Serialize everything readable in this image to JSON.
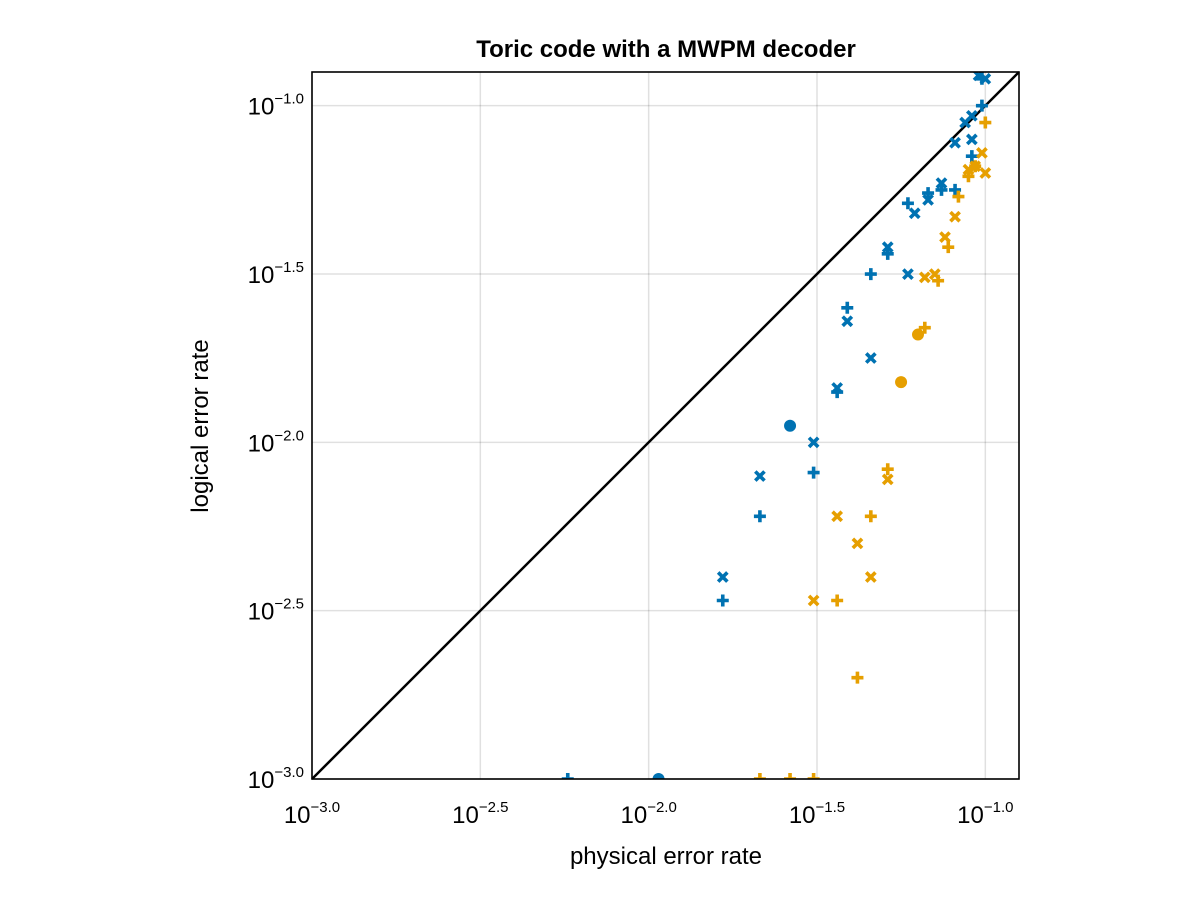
{
  "chart_data": {
    "type": "scatter",
    "title": "Toric code with a MWPM decoder",
    "xlabel": "physical error rate",
    "ylabel": "logical error rate",
    "x_scale": "log10",
    "y_scale": "log10",
    "xlim": [
      0.001,
      0.1259
    ],
    "ylim": [
      0.001,
      0.1259
    ],
    "grid": true,
    "x_ticks": [
      {
        "base": "10",
        "exp": "−3.0",
        "value": 0.001
      },
      {
        "base": "10",
        "exp": "−2.5",
        "value": 0.003162
      },
      {
        "base": "10",
        "exp": "−2.0",
        "value": 0.01
      },
      {
        "base": "10",
        "exp": "−1.5",
        "value": 0.03162
      },
      {
        "base": "10",
        "exp": "−1.0",
        "value": 0.1
      }
    ],
    "y_ticks": [
      {
        "base": "10",
        "exp": "−3.0",
        "value": 0.001
      },
      {
        "base": "10",
        "exp": "−2.5",
        "value": 0.003162
      },
      {
        "base": "10",
        "exp": "−2.0",
        "value": 0.01
      },
      {
        "base": "10",
        "exp": "−1.5",
        "value": 0.03162
      },
      {
        "base": "10",
        "exp": "−1.0",
        "value": 0.1
      }
    ],
    "reference_line": {
      "type": "y=x",
      "color": "#000000"
    },
    "colors": {
      "blue": "#0072b2",
      "orange": "#e69f00"
    },
    "series": [
      {
        "marker": "circle",
        "color": "#0072b2",
        "points": [
          [
            0.0107,
            0.001
          ],
          [
            0.0263,
            0.0112
          ]
        ]
      },
      {
        "marker": "plus",
        "color": "#0072b2",
        "points": [
          [
            0.00575,
            0.001
          ],
          [
            0.0166,
            0.00339
          ],
          [
            0.0214,
            0.00603
          ],
          [
            0.0309,
            0.00813
          ],
          [
            0.0363,
            0.0141
          ],
          [
            0.0389,
            0.0251
          ],
          [
            0.0457,
            0.0316
          ],
          [
            0.0513,
            0.0363
          ],
          [
            0.0589,
            0.0513
          ],
          [
            0.0676,
            0.055
          ],
          [
            0.0741,
            0.0562
          ],
          [
            0.0813,
            0.0562
          ],
          [
            0.0912,
            0.0708
          ],
          [
            0.0977,
            0.1
          ],
          [
            0.0977,
            0.1202
          ]
        ]
      },
      {
        "marker": "cross",
        "color": "#0072b2",
        "points": [
          [
            0.0166,
            0.00398
          ],
          [
            0.0214,
            0.00794
          ],
          [
            0.0309,
            0.01
          ],
          [
            0.0363,
            0.0145
          ],
          [
            0.0389,
            0.0229
          ],
          [
            0.0457,
            0.0178
          ],
          [
            0.0513,
            0.038
          ],
          [
            0.0589,
            0.0316
          ],
          [
            0.0617,
            0.0479
          ],
          [
            0.0676,
            0.0525
          ],
          [
            0.0741,
            0.0589
          ],
          [
            0.0813,
            0.0776
          ],
          [
            0.0871,
            0.0891
          ],
          [
            0.0912,
            0.0933
          ],
          [
            0.0912,
            0.0794
          ],
          [
            0.0955,
            0.123
          ],
          [
            0.1,
            0.1202
          ]
        ]
      },
      {
        "marker": "circle",
        "color": "#e69f00",
        "points": [
          [
            0.0562,
            0.0151
          ],
          [
            0.0631,
            0.0209
          ]
        ]
      },
      {
        "marker": "plus",
        "color": "#e69f00",
        "points": [
          [
            0.0214,
            0.001
          ],
          [
            0.0263,
            0.001
          ],
          [
            0.0309,
            0.001
          ],
          [
            0.0363,
            0.00339
          ],
          [
            0.0417,
            0.002
          ],
          [
            0.0457,
            0.00603
          ],
          [
            0.0513,
            0.00832
          ],
          [
            0.0661,
            0.0219
          ],
          [
            0.0724,
            0.0302
          ],
          [
            0.0776,
            0.038
          ],
          [
            0.0832,
            0.0537
          ],
          [
            0.0891,
            0.0617
          ],
          [
            0.0933,
            0.0661
          ],
          [
            0.1,
            0.0891
          ]
        ]
      },
      {
        "marker": "cross",
        "color": "#e69f00",
        "points": [
          [
            0.0309,
            0.00339
          ],
          [
            0.0363,
            0.00603
          ],
          [
            0.0417,
            0.00501
          ],
          [
            0.0457,
            0.00398
          ],
          [
            0.0513,
            0.00776
          ],
          [
            0.0661,
            0.0309
          ],
          [
            0.0708,
            0.0316
          ],
          [
            0.0759,
            0.0407
          ],
          [
            0.0813,
            0.0468
          ],
          [
            0.0891,
            0.0646
          ],
          [
            0.0933,
            0.0661
          ],
          [
            0.0977,
            0.0724
          ],
          [
            0.1,
            0.0631
          ]
        ]
      }
    ]
  }
}
